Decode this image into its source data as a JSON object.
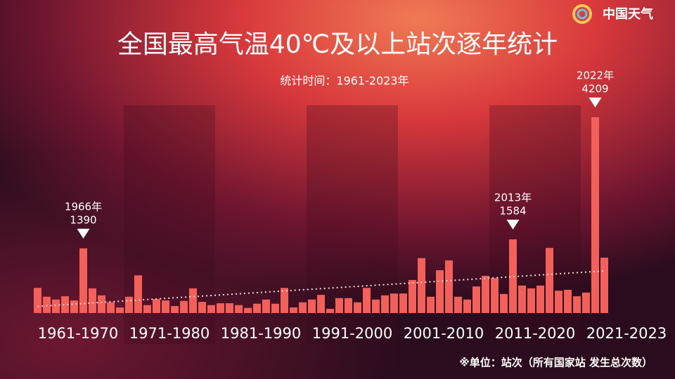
{
  "chart_data": {
    "type": "bar",
    "logo": "中国天气",
    "title": "全国最高气温40℃及以上站次逐年统计",
    "subtitle": "统计时间：1961-2023年",
    "note": "※单位：站次（所有国家站 发生总次数）",
    "color": "#f2605a",
    "trend_line": true,
    "groups": [
      {
        "label": "1961-1970",
        "values": [
          540,
          350,
          290,
          360,
          270,
          1390,
          530,
          380,
          230,
          120
        ]
      },
      {
        "label": "1971-1980",
        "values": [
          350,
          810,
          170,
          300,
          270,
          150,
          260,
          530,
          240,
          170
        ]
      },
      {
        "label": "1981-1990",
        "values": [
          210,
          210,
          170,
          110,
          200,
          290,
          200,
          540,
          120,
          230
        ]
      },
      {
        "label": "1991-2000",
        "values": [
          290,
          390,
          90,
          320,
          320,
          230,
          540,
          290,
          380,
          420
        ]
      },
      {
        "label": "2001-2010",
        "values": [
          420,
          710,
          1180,
          350,
          920,
          1130,
          350,
          290,
          570,
          800
        ]
      },
      {
        "label": "2011-2020",
        "values": [
          750,
          410,
          1584,
          590,
          530,
          590,
          1400,
          480,
          500,
          360
        ]
      },
      {
        "label": "2021-2023",
        "values": [
          440,
          4209,
          1190
        ]
      }
    ],
    "annotations": [
      {
        "label": "1966年",
        "value": 1390
      },
      {
        "label": "2013年",
        "value": 1584
      },
      {
        "label": "2022年",
        "value": 4209
      }
    ]
  }
}
